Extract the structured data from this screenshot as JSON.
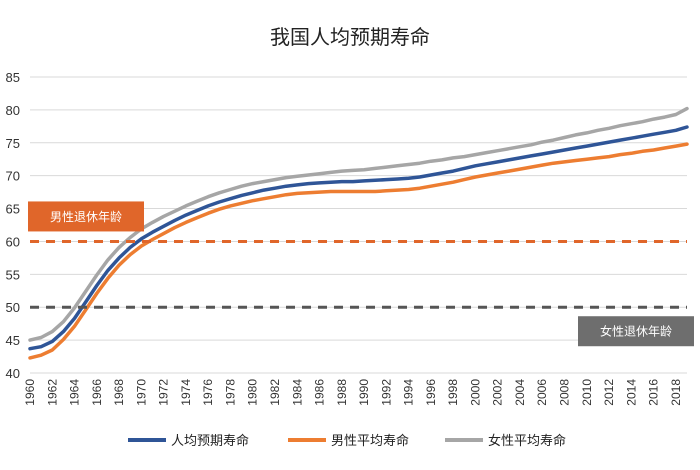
{
  "chart_data": {
    "type": "line",
    "title": "我国人均预期寿命",
    "xlabel": "",
    "ylabel": "",
    "ylim": [
      40,
      85
    ],
    "yticks": [
      "40",
      "45",
      "50",
      "55",
      "60",
      "65",
      "70",
      "75",
      "80",
      "85"
    ],
    "xticks": [
      "1960",
      "1962",
      "1964",
      "1966",
      "1968",
      "1970",
      "1972",
      "1974",
      "1976",
      "1978",
      "1980",
      "1982",
      "1984",
      "1986",
      "1988",
      "1990",
      "1992",
      "1994",
      "1996",
      "1998",
      "2000",
      "2002",
      "2004",
      "2006",
      "2008",
      "2010",
      "2012",
      "2014",
      "2016",
      "2018"
    ],
    "x": [
      1960,
      1961,
      1962,
      1963,
      1964,
      1965,
      1966,
      1967,
      1968,
      1969,
      1970,
      1971,
      1972,
      1973,
      1974,
      1975,
      1976,
      1977,
      1978,
      1979,
      1980,
      1981,
      1982,
      1983,
      1984,
      1985,
      1986,
      1987,
      1988,
      1989,
      1990,
      1991,
      1992,
      1993,
      1994,
      1995,
      1996,
      1997,
      1998,
      1999,
      2000,
      2001,
      2002,
      2003,
      2004,
      2005,
      2006,
      2007,
      2008,
      2009,
      2010,
      2011,
      2012,
      2013,
      2014,
      2015,
      2016,
      2017,
      2018,
      2019
    ],
    "grid": "horizontal",
    "legend_position": "bottom",
    "series": [
      {
        "name": "人均预期寿命",
        "color": "#2f5597",
        "values": [
          43.7,
          44.0,
          44.8,
          46.3,
          48.3,
          50.8,
          53.3,
          55.6,
          57.5,
          59.1,
          60.4,
          61.4,
          62.3,
          63.2,
          64.0,
          64.7,
          65.4,
          66.0,
          66.5,
          67.0,
          67.4,
          67.8,
          68.1,
          68.4,
          68.6,
          68.8,
          68.9,
          69.0,
          69.1,
          69.1,
          69.2,
          69.3,
          69.4,
          69.5,
          69.6,
          69.8,
          70.1,
          70.4,
          70.7,
          71.1,
          71.5,
          71.8,
          72.1,
          72.4,
          72.7,
          73.0,
          73.3,
          73.6,
          73.9,
          74.2,
          74.5,
          74.8,
          75.1,
          75.4,
          75.7,
          76.0,
          76.3,
          76.6,
          76.9,
          77.4
        ]
      },
      {
        "name": "男性平均寿命",
        "color": "#ed7d31",
        "values": [
          42.3,
          42.7,
          43.5,
          45.1,
          47.1,
          49.6,
          52.1,
          54.4,
          56.4,
          58.0,
          59.3,
          60.3,
          61.2,
          62.1,
          62.9,
          63.6,
          64.3,
          64.9,
          65.4,
          65.8,
          66.2,
          66.5,
          66.8,
          67.1,
          67.3,
          67.4,
          67.5,
          67.6,
          67.6,
          67.6,
          67.6,
          67.6,
          67.7,
          67.8,
          67.9,
          68.1,
          68.4,
          68.7,
          69.0,
          69.4,
          69.8,
          70.1,
          70.4,
          70.7,
          71.0,
          71.3,
          71.6,
          71.9,
          72.1,
          72.3,
          72.5,
          72.7,
          72.9,
          73.2,
          73.4,
          73.7,
          73.9,
          74.2,
          74.5,
          74.8
        ]
      },
      {
        "name": "女性平均寿命",
        "color": "#a6a6a6",
        "values": [
          45.0,
          45.4,
          46.3,
          47.8,
          49.9,
          52.4,
          54.9,
          57.2,
          59.1,
          60.6,
          61.9,
          62.9,
          63.8,
          64.6,
          65.4,
          66.1,
          66.8,
          67.4,
          67.9,
          68.4,
          68.8,
          69.1,
          69.4,
          69.7,
          69.9,
          70.1,
          70.3,
          70.5,
          70.7,
          70.8,
          70.9,
          71.1,
          71.3,
          71.5,
          71.7,
          71.9,
          72.2,
          72.4,
          72.7,
          72.9,
          73.2,
          73.5,
          73.8,
          74.1,
          74.4,
          74.7,
          75.1,
          75.4,
          75.8,
          76.2,
          76.5,
          76.9,
          77.2,
          77.6,
          77.9,
          78.2,
          78.6,
          78.9,
          79.3,
          80.2
        ]
      }
    ],
    "reference_lines": [
      {
        "label": "男性退休年龄",
        "value": 60,
        "color": "#e0662a",
        "label_color": "#e0662a",
        "label_side": "left-above"
      },
      {
        "label": "女性退休年龄",
        "value": 50,
        "color": "#555555",
        "label_color": "#6e6e6e",
        "label_side": "right-below"
      }
    ]
  }
}
